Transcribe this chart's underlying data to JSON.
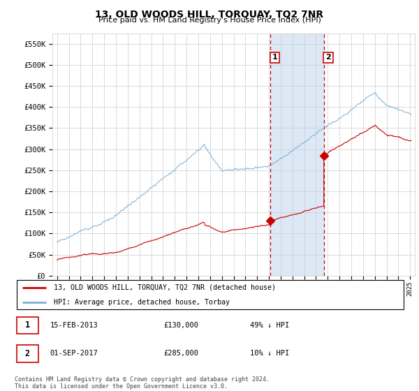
{
  "title": "13, OLD WOODS HILL, TORQUAY, TQ2 7NR",
  "subtitle": "Price paid vs. HM Land Registry's House Price Index (HPI)",
  "legend_line1": "13, OLD WOODS HILL, TORQUAY, TQ2 7NR (detached house)",
  "legend_line2": "HPI: Average price, detached house, Torbay",
  "sale1_date": "15-FEB-2013",
  "sale1_price": 130000,
  "sale1_hpi_rel": "49% ↓ HPI",
  "sale2_date": "01-SEP-2017",
  "sale2_price": 285000,
  "sale2_hpi_rel": "10% ↓ HPI",
  "sale1_year": 2013.12,
  "sale2_year": 2017.67,
  "ylim": [
    0,
    575000
  ],
  "xlim_start": 1994.6,
  "xlim_end": 2025.4,
  "yticks": [
    0,
    50000,
    100000,
    150000,
    200000,
    250000,
    300000,
    350000,
    400000,
    450000,
    500000,
    550000
  ],
  "ytick_labels": [
    "£0",
    "£50K",
    "£100K",
    "£150K",
    "£200K",
    "£250K",
    "£300K",
    "£350K",
    "£400K",
    "£450K",
    "£500K",
    "£550K"
  ],
  "red_color": "#cc0000",
  "blue_color": "#7bafd4",
  "shade_color": "#dce8f5",
  "footer": "Contains HM Land Registry data © Crown copyright and database right 2024.\nThis data is licensed under the Open Government Licence v3.0.",
  "xticks": [
    1995,
    1996,
    1997,
    1998,
    1999,
    2000,
    2001,
    2002,
    2003,
    2004,
    2005,
    2006,
    2007,
    2008,
    2009,
    2010,
    2011,
    2012,
    2013,
    2014,
    2015,
    2016,
    2017,
    2018,
    2019,
    2020,
    2021,
    2022,
    2023,
    2024,
    2025
  ]
}
